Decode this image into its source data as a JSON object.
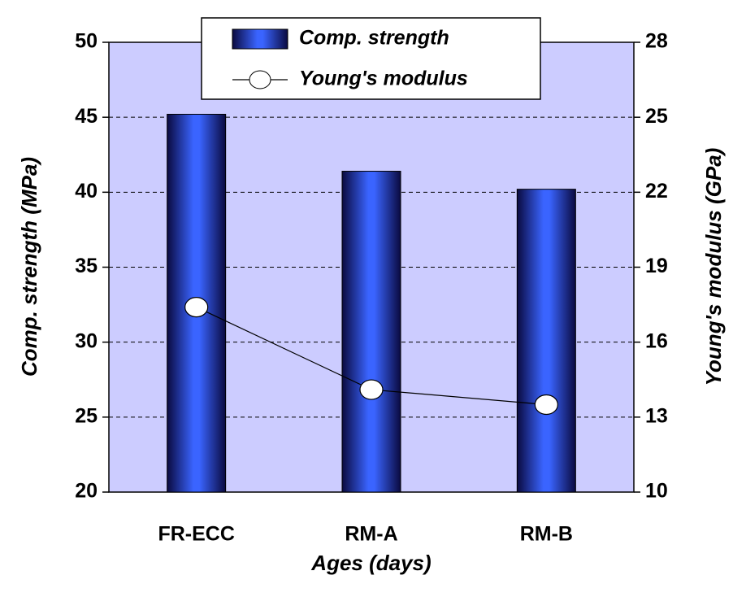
{
  "chart_data": {
    "type": "bar",
    "categories": [
      "FR-ECC",
      "RM-A",
      "RM-B"
    ],
    "series": [
      {
        "name": "Comp. strength",
        "type": "bar",
        "color": "#2a4bd8",
        "values": [
          45.2,
          41.4,
          40.2
        ]
      },
      {
        "name": "Young's modulus",
        "type": "line",
        "axis": "y2",
        "color": "#000000",
        "values": [
          17.4,
          14.1,
          13.5
        ]
      }
    ],
    "ylim": [
      20,
      50
    ],
    "yticks": [
      20,
      25,
      30,
      35,
      40,
      45,
      50
    ],
    "y2lim": [
      10,
      28
    ],
    "y2ticks": [
      10,
      13,
      16,
      19,
      22,
      25,
      28
    ],
    "xlabel": "Ages (days)",
    "ylabel": "Comp. strength (MPa)",
    "y2label": "Young's modulus (GPa)",
    "grid": true,
    "background": "#ccccff"
  }
}
